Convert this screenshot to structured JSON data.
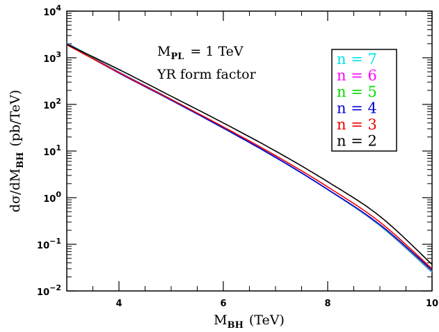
{
  "chart_data": {
    "type": "line",
    "title": "",
    "xlabel": "M",
    "xlabel_sub": "BH",
    "xlabel_unit": "(TeV)",
    "ylabel_prefix": "dσ/dM",
    "ylabel_sub": "BH",
    "ylabel_unit": "(pb/TeV)",
    "xlim": [
      3,
      10
    ],
    "ylim": [
      0.01,
      10000
    ],
    "yscale": "log",
    "grid": false,
    "x_ticks": [
      {
        "value": 4,
        "label": "4"
      },
      {
        "value": 6,
        "label": "6"
      },
      {
        "value": 8,
        "label": "8"
      },
      {
        "value": 10,
        "label": "10"
      }
    ],
    "y_ticks": [
      {
        "value": 0.01,
        "base": "10",
        "exp": "−2"
      },
      {
        "value": 0.1,
        "base": "10",
        "exp": "−1"
      },
      {
        "value": 1,
        "base": "10",
        "exp": "0"
      },
      {
        "value": 10,
        "base": "10",
        "exp": "1"
      },
      {
        "value": 100,
        "base": "10",
        "exp": "2"
      },
      {
        "value": 1000,
        "base": "10",
        "exp": "3"
      },
      {
        "value": 10000,
        "base": "10",
        "exp": "4"
      }
    ],
    "annotations": {
      "line1_main": "M",
      "line1_sub": "PL",
      "line1_rest": "= 1 TeV",
      "line2": "YR form factor"
    },
    "legend_position": "top-right",
    "series": [
      {
        "name": "n = 7",
        "color": "#00e5e5",
        "x": [
          3,
          4,
          5,
          6,
          7,
          8,
          9,
          10
        ],
        "y": [
          2100,
          500,
          130,
          32,
          7.5,
          1.5,
          0.25,
          0.025
        ]
      },
      {
        "name": "n = 6",
        "color": "#ff00ff",
        "x": [
          3,
          4,
          5,
          6,
          7,
          8,
          9,
          10
        ],
        "y": [
          2050,
          490,
          128,
          31.5,
          7.4,
          1.5,
          0.255,
          0.026
        ]
      },
      {
        "name": "n = 5",
        "color": "#00dd00",
        "x": [
          3,
          4,
          5,
          6,
          7,
          8,
          9,
          10
        ],
        "y": [
          2000,
          480,
          125,
          31,
          7.3,
          1.5,
          0.26,
          0.027
        ]
      },
      {
        "name": "n = 4",
        "color": "#0000dd",
        "x": [
          3,
          4,
          5,
          6,
          7,
          8,
          9,
          10
        ],
        "y": [
          1950,
          470,
          123,
          31,
          7.3,
          1.5,
          0.265,
          0.028
        ]
      },
      {
        "name": "n = 3",
        "color": "#ee0000",
        "x": [
          3,
          4,
          5,
          6,
          7,
          8,
          9,
          10
        ],
        "y": [
          1900,
          480,
          128,
          33,
          8.0,
          1.7,
          0.3,
          0.03
        ]
      },
      {
        "name": "n = 2",
        "color": "#000000",
        "x": [
          3,
          4,
          5,
          6,
          7,
          8,
          9,
          10
        ],
        "y": [
          1950,
          560,
          150,
          40,
          10,
          2.2,
          0.4,
          0.037
        ]
      }
    ]
  }
}
